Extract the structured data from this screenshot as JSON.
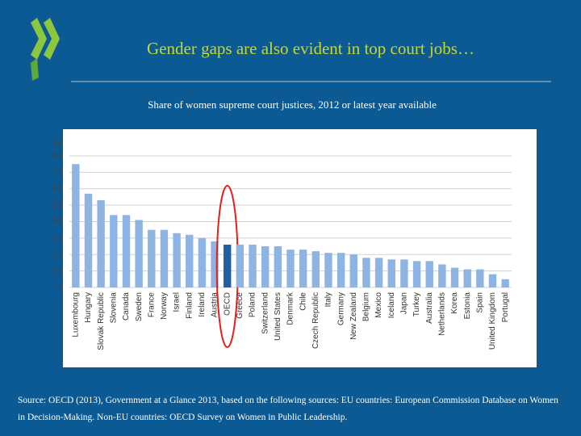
{
  "chart_data": {
    "type": "bar",
    "title": "Gender gaps are also evident in top court jobs…",
    "subtitle": "Share of women supreme court justices, 2012 or latest year available",
    "ylabel": "%",
    "categories": [
      "Luxembourg",
      "Hungary",
      "Slovak Republic",
      "Slovenia",
      "Canada",
      "Sweden",
      "France",
      "Norway",
      "Israel",
      "Finland",
      "Ireland",
      "Austria",
      "OECD",
      "Greece",
      "Poland",
      "Switzerland",
      "United States",
      "Denmark",
      "Chile",
      "Czech Republic",
      "Italy",
      "Germany",
      "New Zealand",
      "Belgium",
      "Mexico",
      "Iceland",
      "Japan",
      "Turkey",
      "Australia",
      "Netherlands",
      "Korea",
      "Estonia",
      "Spain",
      "United Kingdom",
      "Portugal"
    ],
    "values": [
      75,
      57,
      53,
      44,
      44,
      41,
      35,
      35,
      33,
      32,
      30,
      28,
      26,
      26,
      26,
      25,
      25,
      23,
      23,
      22,
      21,
      21,
      20,
      18,
      18,
      17,
      17,
      16,
      16,
      14,
      12,
      11,
      11,
      8,
      5
    ],
    "color": "#8eb4e3",
    "highlight": {
      "category": "OECD",
      "color": "#1f5fa5",
      "ring_color": "#e0211b"
    },
    "ylim": [
      0,
      80
    ],
    "yticks": [
      0,
      10,
      20,
      30,
      40,
      50,
      60,
      70,
      80
    ],
    "grid": true,
    "source": "Source: OECD (2013), Government at a Glance 2013, based on the following sources: EU countries: European Commission Database on Women in Decision-Making. Non-EU countries: OECD Survey on Women in Public Leadership."
  }
}
